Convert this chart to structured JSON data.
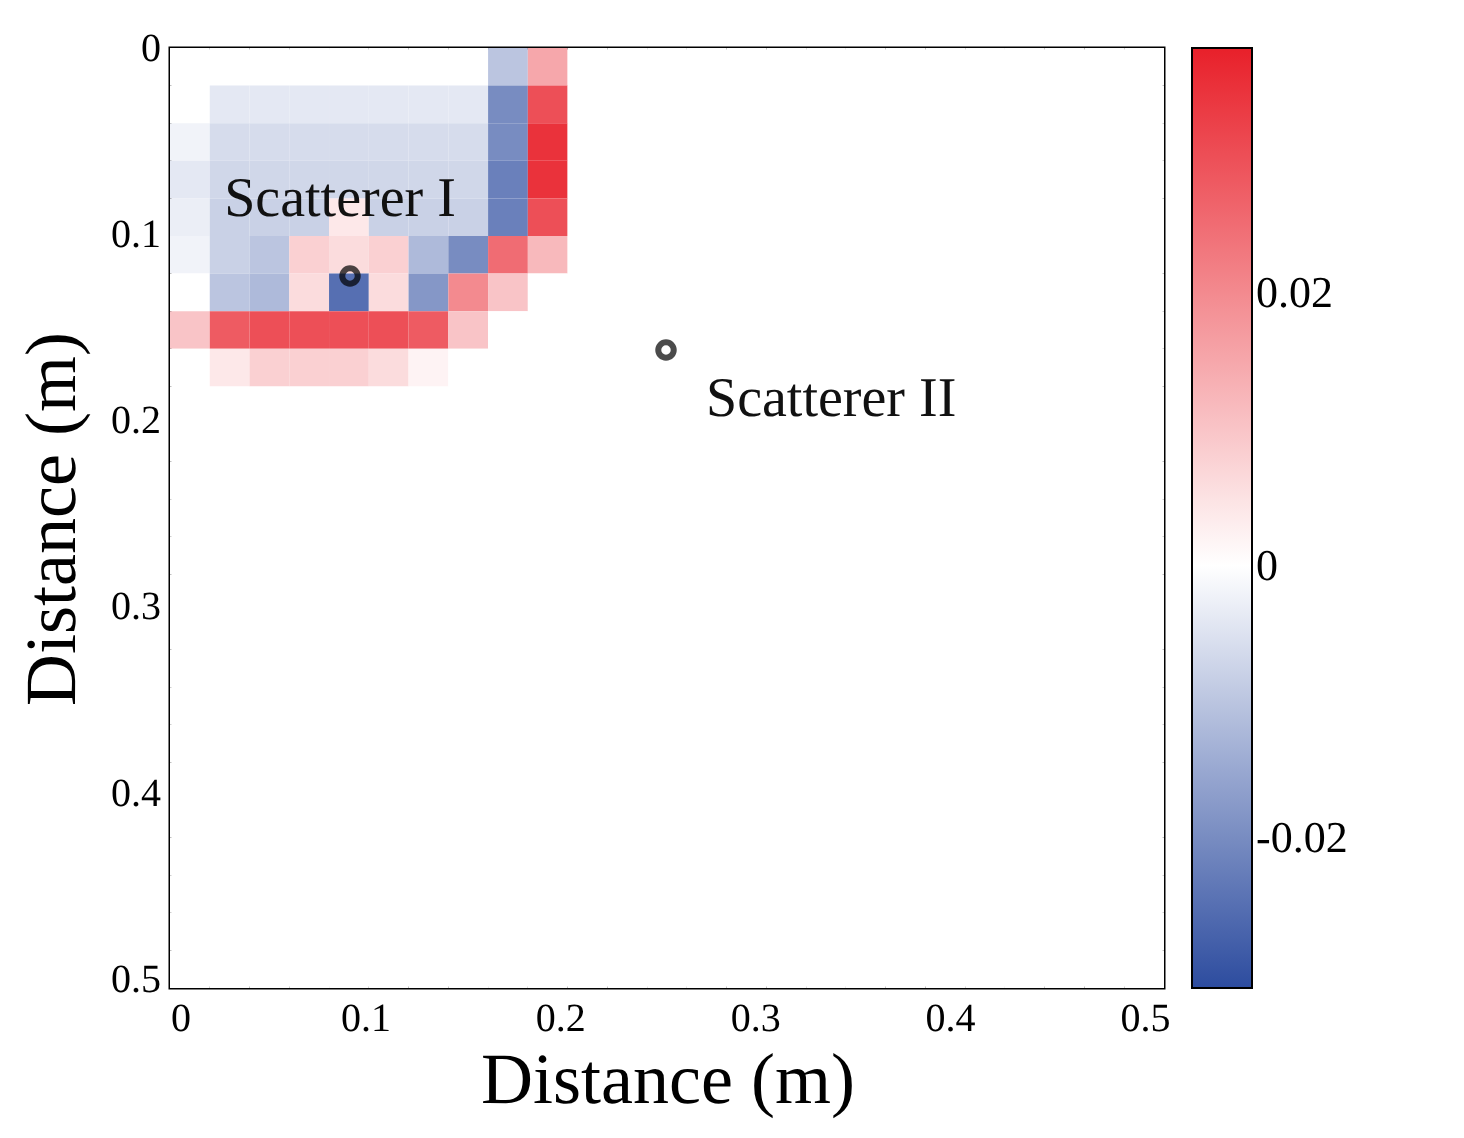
{
  "chart_data": {
    "type": "heatmap",
    "xlabel": "Distance (m)",
    "ylabel": "Distance (m)",
    "xlim": [
      0,
      0.51
    ],
    "ylim": [
      0.505,
      0
    ],
    "xticks": [
      0,
      0.1,
      0.2,
      0.3,
      0.4,
      0.5
    ],
    "yticks": [
      0,
      0.1,
      0.2,
      0.3,
      0.4,
      0.5
    ],
    "clim": [
      -0.031,
      0.038
    ],
    "cticks": [
      -0.02,
      0,
      0.02
    ],
    "x": [
      0.0102,
      0.0306,
      0.051,
      0.0714,
      0.0918,
      0.1122,
      0.1326,
      0.153,
      0.1734,
      0.1938,
      0.2142,
      0.2346,
      0.255,
      0.2754,
      0.2958,
      0.3162,
      0.3366,
      0.357,
      0.3774,
      0.3978,
      0.4182,
      0.4386,
      0.459,
      0.4794,
      0.4998
    ],
    "cells": [
      [
        0,
        0,
        0,
        0,
        0,
        0,
        0,
        0,
        -0.01,
        0.015,
        0,
        0,
        0,
        0,
        0,
        0,
        0,
        0,
        0,
        0,
        0,
        0,
        0,
        0,
        0
      ],
      [
        0,
        -0.004,
        -0.004,
        -0.004,
        -0.004,
        -0.004,
        -0.004,
        -0.004,
        -0.02,
        0.03,
        0,
        0,
        0,
        0,
        0,
        0,
        0,
        0,
        0,
        0,
        0,
        0,
        0,
        0,
        0
      ],
      [
        -0.002,
        -0.006,
        -0.006,
        -0.006,
        -0.006,
        -0.006,
        -0.006,
        -0.006,
        -0.02,
        0.035,
        0,
        0,
        0,
        0,
        0,
        0,
        0,
        0,
        0,
        0,
        0,
        0,
        0,
        0,
        0
      ],
      [
        -0.004,
        -0.007,
        -0.007,
        -0.007,
        -0.007,
        -0.007,
        -0.007,
        -0.007,
        -0.022,
        0.035,
        0,
        0,
        0,
        0,
        0,
        0,
        0,
        0,
        0,
        0,
        0,
        0,
        0,
        0,
        0
      ],
      [
        -0.003,
        -0.008,
        -0.008,
        -0.008,
        0.004,
        -0.008,
        -0.008,
        -0.008,
        -0.022,
        0.03,
        0,
        0,
        0,
        0,
        0,
        0,
        0,
        0,
        0,
        0,
        0,
        0,
        0,
        0,
        0
      ],
      [
        -0.002,
        -0.008,
        -0.01,
        0.008,
        0.006,
        0.008,
        -0.012,
        -0.02,
        0.025,
        0.012,
        0,
        0,
        0,
        0,
        0,
        0,
        0,
        0,
        0,
        0,
        0,
        0,
        0,
        0,
        0
      ],
      [
        0,
        -0.01,
        -0.012,
        0.006,
        -0.025,
        0.006,
        -0.018,
        0.02,
        0.01,
        0,
        0,
        0,
        0,
        0,
        0,
        0,
        0,
        0,
        0,
        0,
        0,
        0,
        0,
        0,
        0
      ],
      [
        0.01,
        0.028,
        0.03,
        0.03,
        0.03,
        0.03,
        0.028,
        0.01,
        0,
        0,
        0,
        0,
        0,
        0,
        0,
        0,
        0,
        0,
        0,
        0,
        0,
        0,
        0,
        0,
        0
      ],
      [
        0,
        0.004,
        0.008,
        0.008,
        0.008,
        0.006,
        0.002,
        0,
        0,
        0,
        0,
        0,
        0,
        0,
        0,
        0,
        0,
        0,
        0,
        0,
        0,
        0,
        0,
        0,
        0
      ],
      [
        0,
        0,
        0,
        0,
        0,
        0,
        0,
        0,
        0,
        0,
        0,
        0,
        0,
        0,
        0,
        0,
        0,
        0,
        0,
        0,
        0,
        0,
        0,
        0,
        0
      ],
      [
        0,
        0,
        0,
        0,
        0,
        0,
        0,
        0,
        0,
        0,
        0,
        0,
        0,
        0,
        0,
        0,
        0,
        0,
        0,
        0,
        0,
        0,
        0,
        0,
        0
      ],
      [
        0,
        0,
        0,
        0,
        0,
        0,
        0,
        0,
        0,
        0,
        0,
        0,
        0,
        0,
        0,
        0,
        0,
        0,
        0,
        0,
        0,
        0,
        0,
        0,
        0
      ],
      [
        0,
        0,
        0,
        0,
        0,
        0,
        0,
        0,
        0,
        0,
        0,
        0,
        0,
        0,
        0,
        0,
        0,
        0,
        0,
        0,
        0,
        0,
        0,
        0,
        0
      ],
      [
        0,
        0,
        0,
        0,
        0,
        0,
        0,
        0,
        0,
        0,
        0,
        0,
        0,
        0,
        0,
        0,
        0,
        0,
        0,
        0,
        0,
        0,
        0,
        0,
        0
      ],
      [
        0,
        0,
        0,
        0,
        0,
        0,
        0,
        0,
        0,
        0,
        0,
        0,
        0,
        0,
        0,
        0,
        0,
        0,
        0,
        0,
        0,
        0,
        0,
        0,
        0
      ],
      [
        0,
        0,
        0,
        0,
        0,
        0,
        0,
        0,
        0,
        0,
        0,
        0,
        0,
        0,
        0,
        0,
        0,
        0,
        0,
        0,
        0,
        0,
        0,
        0,
        0
      ],
      [
        0,
        0,
        0,
        0,
        0,
        0,
        0,
        0,
        0,
        0,
        0,
        0,
        0,
        0,
        0,
        0,
        0,
        0,
        0,
        0,
        0,
        0,
        0,
        0,
        0
      ],
      [
        0,
        0,
        0,
        0,
        0,
        0,
        0,
        0,
        0,
        0,
        0,
        0,
        0,
        0,
        0,
        0,
        0,
        0,
        0,
        0,
        0,
        0,
        0,
        0,
        0
      ],
      [
        0,
        0,
        0,
        0,
        0,
        0,
        0,
        0,
        0,
        0,
        0,
        0,
        0,
        0,
        0,
        0,
        0,
        0,
        0,
        0,
        0,
        0,
        0,
        0,
        0
      ],
      [
        0,
        0,
        0,
        0,
        0,
        0,
        0,
        0,
        0,
        0,
        0,
        0,
        0,
        0,
        0,
        0,
        0,
        0,
        0,
        0,
        0,
        0,
        0,
        0,
        0
      ],
      [
        0,
        0,
        0,
        0,
        0,
        0,
        0,
        0,
        0,
        0,
        0,
        0,
        0,
        0,
        0,
        0,
        0,
        0,
        0,
        0,
        0,
        0,
        0,
        0,
        0
      ],
      [
        0,
        0,
        0,
        0,
        0,
        0,
        0,
        0,
        0,
        0,
        0,
        0,
        0,
        0,
        0,
        0,
        0,
        0,
        0,
        0,
        0,
        0,
        0,
        0,
        0
      ],
      [
        0,
        0,
        0,
        0,
        0,
        0,
        0,
        0,
        0,
        0,
        0,
        0,
        0,
        0,
        0,
        0,
        0,
        0,
        0,
        0,
        0,
        0,
        0,
        0,
        0
      ],
      [
        0,
        0,
        0,
        0,
        0,
        0,
        0,
        0,
        0,
        0,
        0,
        0,
        0,
        0,
        0,
        0,
        0,
        0,
        0,
        0,
        0,
        0,
        0,
        0,
        0
      ],
      [
        0,
        0,
        0,
        0,
        0,
        0,
        0,
        0,
        0,
        0,
        0,
        0,
        0,
        0,
        0,
        0,
        0,
        0,
        0,
        0,
        0,
        0,
        0,
        0,
        0
      ]
    ],
    "annotations": [
      "Scatterer I",
      "Scatterer II"
    ]
  }
}
